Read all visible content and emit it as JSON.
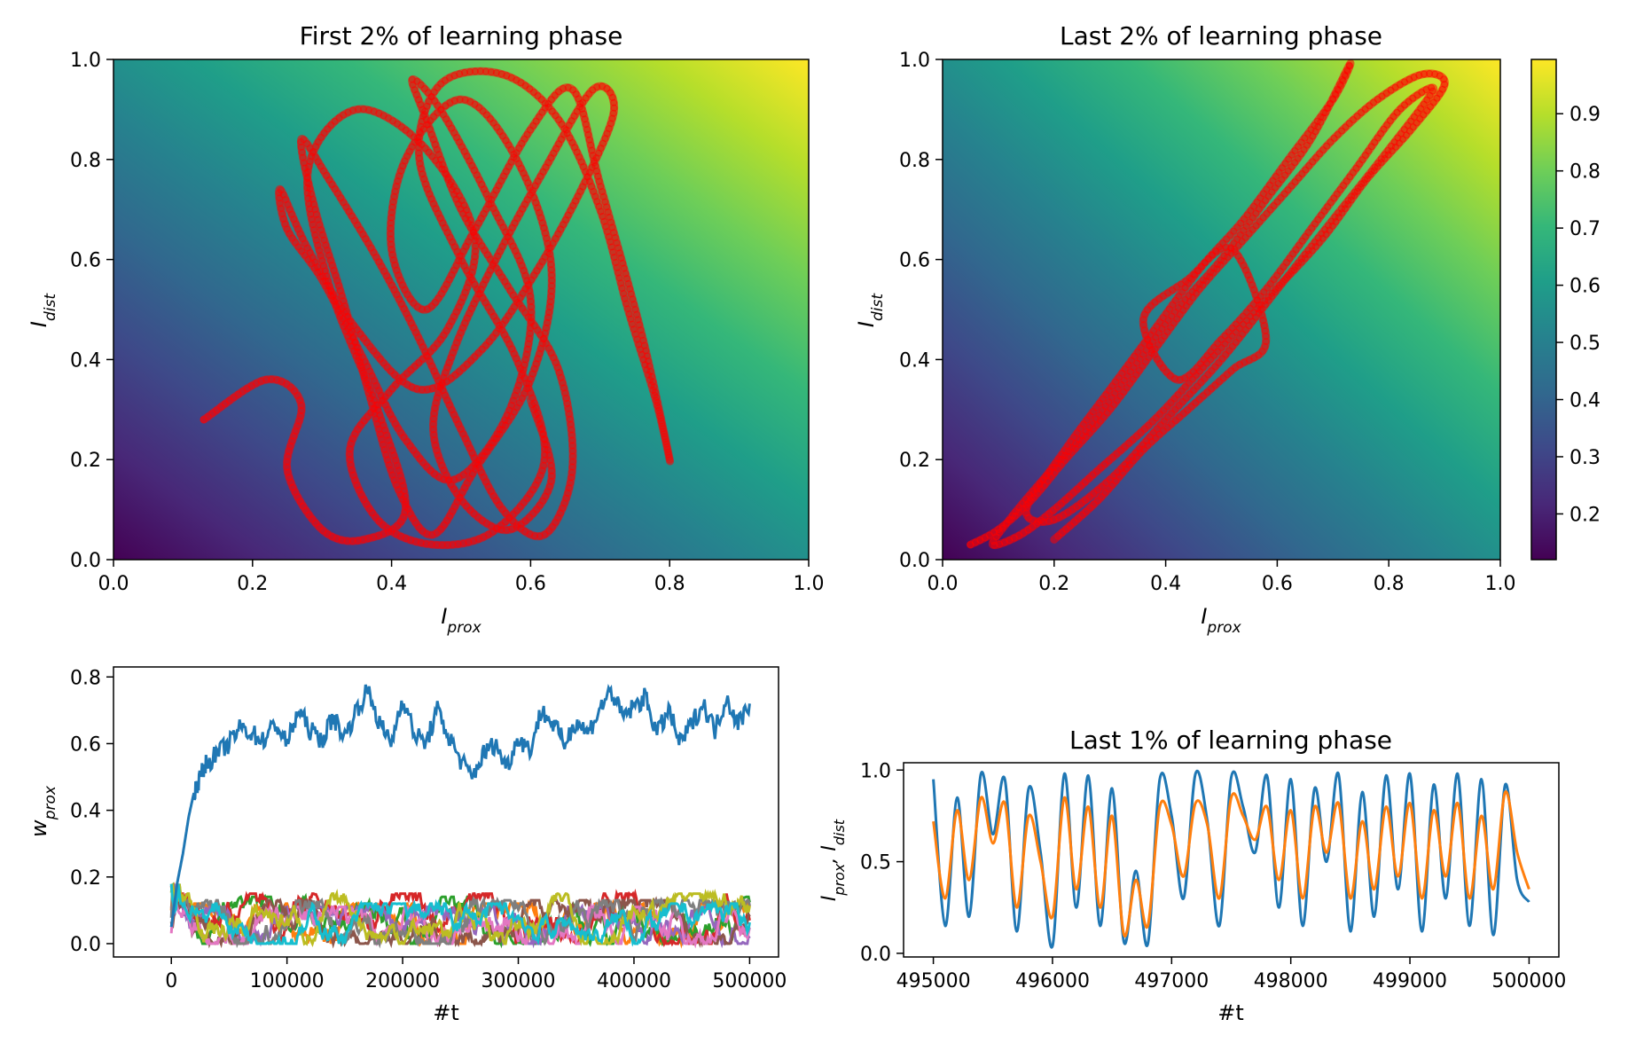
{
  "figure": {
    "colormap": "viridis",
    "colormap_stops": [
      "#440154",
      "#482878",
      "#3e4989",
      "#31688e",
      "#26828e",
      "#1f9e89",
      "#35b779",
      "#6ece58",
      "#b5de2b",
      "#fde725"
    ],
    "trajectory_color": "#ff0000"
  },
  "chart_data": [
    {
      "id": "first",
      "type": "scatter",
      "title": "First 2% of learning phase",
      "xlabel": "I_prox",
      "ylabel": "I_dist",
      "xlim": [
        0,
        1
      ],
      "ylim": [
        0,
        1
      ],
      "xticks": [
        "0.0",
        "0.2",
        "0.4",
        "0.6",
        "0.8",
        "1.0"
      ],
      "yticks": [
        "0.0",
        "0.2",
        "0.4",
        "0.6",
        "0.8",
        "1.0"
      ],
      "background": "heatmap of output over (I_prox, I_dist), viridis",
      "trajectory": {
        "color": "#ff0000",
        "spread_x": [
          0.13,
          0.8
        ],
        "spread_y": [
          0.02,
          0.98
        ],
        "x": [
          0.13,
          0.22,
          0.27,
          0.25,
          0.3,
          0.36,
          0.42,
          0.38,
          0.31,
          0.28,
          0.35,
          0.45,
          0.52,
          0.48,
          0.4,
          0.34,
          0.38,
          0.46,
          0.55,
          0.62,
          0.58,
          0.5,
          0.44,
          0.47,
          0.56,
          0.64,
          0.7,
          0.74,
          0.78,
          0.8,
          0.76,
          0.7,
          0.66,
          0.6,
          0.52,
          0.45,
          0.4,
          0.42,
          0.5,
          0.58,
          0.63,
          0.6,
          0.52,
          0.46,
          0.41,
          0.37,
          0.33,
          0.29,
          0.27,
          0.31,
          0.38,
          0.44,
          0.5,
          0.56,
          0.62,
          0.66,
          0.64,
          0.57,
          0.5,
          0.45,
          0.43,
          0.47,
          0.54,
          0.6,
          0.57,
          0.49,
          0.42,
          0.36,
          0.3,
          0.25,
          0.24,
          0.28,
          0.35,
          0.44,
          0.53,
          0.61,
          0.68,
          0.72,
          0.69,
          0.62,
          0.55,
          0.49,
          0.46,
          0.5,
          0.57,
          0.63,
          0.6
        ],
        "y": [
          0.28,
          0.36,
          0.31,
          0.18,
          0.06,
          0.04,
          0.1,
          0.3,
          0.55,
          0.78,
          0.9,
          0.82,
          0.64,
          0.46,
          0.34,
          0.22,
          0.08,
          0.03,
          0.06,
          0.2,
          0.4,
          0.6,
          0.8,
          0.95,
          0.97,
          0.88,
          0.7,
          0.5,
          0.32,
          0.2,
          0.45,
          0.75,
          0.94,
          0.86,
          0.66,
          0.5,
          0.62,
          0.8,
          0.92,
          0.8,
          0.58,
          0.36,
          0.18,
          0.05,
          0.14,
          0.32,
          0.52,
          0.7,
          0.84,
          0.76,
          0.6,
          0.44,
          0.26,
          0.1,
          0.05,
          0.18,
          0.38,
          0.54,
          0.7,
          0.88,
          0.96,
          0.9,
          0.72,
          0.52,
          0.3,
          0.16,
          0.24,
          0.4,
          0.56,
          0.66,
          0.74,
          0.62,
          0.46,
          0.34,
          0.42,
          0.58,
          0.76,
          0.9,
          0.94,
          0.78,
          0.6,
          0.42,
          0.26,
          0.12,
          0.06,
          0.16,
          0.32
        ]
      }
    },
    {
      "id": "last",
      "type": "scatter",
      "title": "Last 2% of learning phase",
      "xlabel": "I_prox",
      "ylabel": "I_dist",
      "xlim": [
        0,
        1
      ],
      "ylim": [
        0,
        1
      ],
      "xticks": [
        "0.0",
        "0.2",
        "0.4",
        "0.6",
        "0.8",
        "1.0"
      ],
      "yticks": [
        "0.0",
        "0.2",
        "0.4",
        "0.6",
        "0.8",
        "1.0"
      ],
      "background": "heatmap of output over (I_prox, I_dist), viridis",
      "trajectory": {
        "color": "#ff0000",
        "spread_x": [
          0.05,
          0.9
        ],
        "spread_y": [
          0.02,
          0.99
        ],
        "x": [
          0.05,
          0.1,
          0.16,
          0.22,
          0.3,
          0.38,
          0.46,
          0.54,
          0.62,
          0.7,
          0.78,
          0.86,
          0.9,
          0.84,
          0.76,
          0.68,
          0.58,
          0.48,
          0.38,
          0.28,
          0.2,
          0.14,
          0.09,
          0.12,
          0.18,
          0.26,
          0.34,
          0.42,
          0.5,
          0.58,
          0.66,
          0.73,
          0.7,
          0.62,
          0.54,
          0.46,
          0.38,
          0.3,
          0.22,
          0.15,
          0.2,
          0.3,
          0.4,
          0.5,
          0.6,
          0.7,
          0.8,
          0.88,
          0.82,
          0.74,
          0.66,
          0.58,
          0.5,
          0.42,
          0.36,
          0.44,
          0.52,
          0.58,
          0.52,
          0.44,
          0.36,
          0.28,
          0.2
        ],
        "y": [
          0.03,
          0.06,
          0.12,
          0.2,
          0.3,
          0.42,
          0.54,
          0.64,
          0.74,
          0.84,
          0.92,
          0.97,
          0.95,
          0.86,
          0.76,
          0.64,
          0.52,
          0.4,
          0.28,
          0.18,
          0.1,
          0.05,
          0.03,
          0.08,
          0.16,
          0.26,
          0.38,
          0.5,
          0.6,
          0.72,
          0.84,
          0.99,
          0.92,
          0.8,
          0.68,
          0.58,
          0.46,
          0.34,
          0.22,
          0.1,
          0.08,
          0.16,
          0.28,
          0.4,
          0.54,
          0.68,
          0.82,
          0.94,
          0.9,
          0.78,
          0.66,
          0.54,
          0.44,
          0.36,
          0.48,
          0.56,
          0.62,
          0.44,
          0.38,
          0.3,
          0.22,
          0.12,
          0.04
        ]
      }
    },
    {
      "id": "weights",
      "type": "line",
      "title": "",
      "xlabel": "#t",
      "ylabel": "w_prox",
      "xlim": [
        -50000,
        525000
      ],
      "ylim": [
        -0.04,
        0.83
      ],
      "xticks": [
        0,
        100000,
        200000,
        300000,
        400000,
        500000
      ],
      "xtick_labels": [
        "0",
        "100000",
        "200000",
        "300000",
        "400000",
        "500000"
      ],
      "yticks": [
        0.0,
        0.2,
        0.4,
        0.6,
        0.8
      ],
      "ytick_labels": [
        "0.0",
        "0.2",
        "0.4",
        "0.6",
        "0.8"
      ],
      "series": [
        {
          "color": "#1f77b4",
          "x": [
            0,
            5000,
            10000,
            15000,
            20000,
            25000,
            30000,
            40000,
            50000,
            60000,
            70000,
            80000,
            90000,
            100000,
            110000,
            120000,
            130000,
            140000,
            150000,
            160000,
            170000,
            180000,
            190000,
            200000,
            210000,
            220000,
            230000,
            240000,
            250000,
            260000,
            270000,
            280000,
            290000,
            300000,
            310000,
            320000,
            330000,
            340000,
            350000,
            360000,
            370000,
            380000,
            390000,
            400000,
            410000,
            420000,
            430000,
            440000,
            450000,
            460000,
            470000,
            480000,
            490000,
            500000
          ],
          "values": [
            0.05,
            0.18,
            0.27,
            0.38,
            0.46,
            0.5,
            0.54,
            0.57,
            0.6,
            0.65,
            0.63,
            0.61,
            0.66,
            0.6,
            0.7,
            0.64,
            0.61,
            0.68,
            0.62,
            0.7,
            0.76,
            0.66,
            0.6,
            0.74,
            0.63,
            0.6,
            0.7,
            0.62,
            0.55,
            0.5,
            0.57,
            0.6,
            0.53,
            0.62,
            0.58,
            0.7,
            0.66,
            0.6,
            0.67,
            0.63,
            0.7,
            0.76,
            0.68,
            0.71,
            0.74,
            0.63,
            0.7,
            0.6,
            0.66,
            0.72,
            0.64,
            0.74,
            0.66,
            0.72
          ]
        },
        {
          "color": "#ff7f0e",
          "base": 0.06,
          "amp": 0.06
        },
        {
          "color": "#2ca02c",
          "base": 0.07,
          "amp": 0.07
        },
        {
          "color": "#d62728",
          "base": 0.08,
          "amp": 0.07
        },
        {
          "color": "#9467bd",
          "base": 0.05,
          "amp": 0.06
        },
        {
          "color": "#8c564b",
          "base": 0.06,
          "amp": 0.07
        },
        {
          "color": "#e377c2",
          "base": 0.05,
          "amp": 0.06
        },
        {
          "color": "#7f7f7f",
          "base": 0.06,
          "amp": 0.07
        },
        {
          "color": "#bcbd22",
          "base": 0.07,
          "amp": 0.08
        },
        {
          "color": "#17becf",
          "base": 0.06,
          "amp": 0.06
        }
      ]
    },
    {
      "id": "currents",
      "type": "line",
      "title": "Last 1% of learning phase",
      "xlabel": "#t",
      "ylabel": "I_prox, I_dist",
      "xlim": [
        494750,
        500250
      ],
      "ylim": [
        -0.02,
        1.04
      ],
      "xticks": [
        495000,
        496000,
        497000,
        498000,
        499000,
        500000
      ],
      "xtick_labels": [
        "495000",
        "496000",
        "497000",
        "498000",
        "499000",
        "500000"
      ],
      "yticks": [
        0.0,
        0.5,
        1.0
      ],
      "ytick_labels": [
        "0.0",
        "0.5",
        "1.0"
      ],
      "series": [
        {
          "color": "#1f77b4",
          "label": "I_prox",
          "x": [
            495000,
            495100,
            495200,
            495300,
            495400,
            495500,
            495600,
            495700,
            495800,
            495900,
            496000,
            496100,
            496200,
            496300,
            496400,
            496500,
            496600,
            496700,
            496800,
            496900,
            497000,
            497100,
            497200,
            497300,
            497400,
            497500,
            497600,
            497700,
            497800,
            497900,
            498000,
            498100,
            498200,
            498300,
            498400,
            498500,
            498600,
            498700,
            498800,
            498900,
            499000,
            499100,
            499200,
            499300,
            499400,
            499500,
            499600,
            499700,
            499800,
            499900,
            500000
          ],
          "values": [
            0.95,
            0.15,
            0.85,
            0.2,
            0.98,
            0.65,
            0.95,
            0.12,
            0.9,
            0.55,
            0.04,
            0.98,
            0.25,
            0.97,
            0.15,
            0.9,
            0.06,
            0.45,
            0.05,
            0.95,
            0.75,
            0.3,
            0.98,
            0.72,
            0.15,
            0.96,
            0.8,
            0.55,
            0.97,
            0.25,
            0.95,
            0.15,
            0.9,
            0.5,
            0.98,
            0.12,
            0.88,
            0.2,
            0.97,
            0.35,
            0.98,
            0.12,
            0.92,
            0.3,
            0.98,
            0.15,
            0.95,
            0.1,
            0.92,
            0.4,
            0.28
          ]
        },
        {
          "color": "#ff7f0e",
          "label": "I_dist",
          "x": [
            495000,
            495100,
            495200,
            495300,
            495400,
            495500,
            495600,
            495700,
            495800,
            495900,
            496000,
            496100,
            496200,
            496300,
            496400,
            496500,
            496600,
            496700,
            496800,
            496900,
            497000,
            497100,
            497200,
            497300,
            497400,
            497500,
            497600,
            497700,
            497800,
            497900,
            498000,
            498100,
            498200,
            498300,
            498400,
            498500,
            498600,
            498700,
            498800,
            498900,
            499000,
            499100,
            499200,
            499300,
            499400,
            499500,
            499600,
            499700,
            499800,
            499900,
            500000
          ],
          "values": [
            0.72,
            0.3,
            0.78,
            0.4,
            0.85,
            0.6,
            0.82,
            0.25,
            0.75,
            0.5,
            0.2,
            0.85,
            0.35,
            0.8,
            0.25,
            0.75,
            0.1,
            0.4,
            0.15,
            0.8,
            0.7,
            0.42,
            0.82,
            0.7,
            0.3,
            0.85,
            0.75,
            0.62,
            0.8,
            0.4,
            0.78,
            0.3,
            0.8,
            0.55,
            0.82,
            0.3,
            0.72,
            0.35,
            0.8,
            0.42,
            0.82,
            0.3,
            0.78,
            0.42,
            0.82,
            0.3,
            0.75,
            0.35,
            0.88,
            0.55,
            0.35
          ]
        }
      ]
    }
  ]
}
